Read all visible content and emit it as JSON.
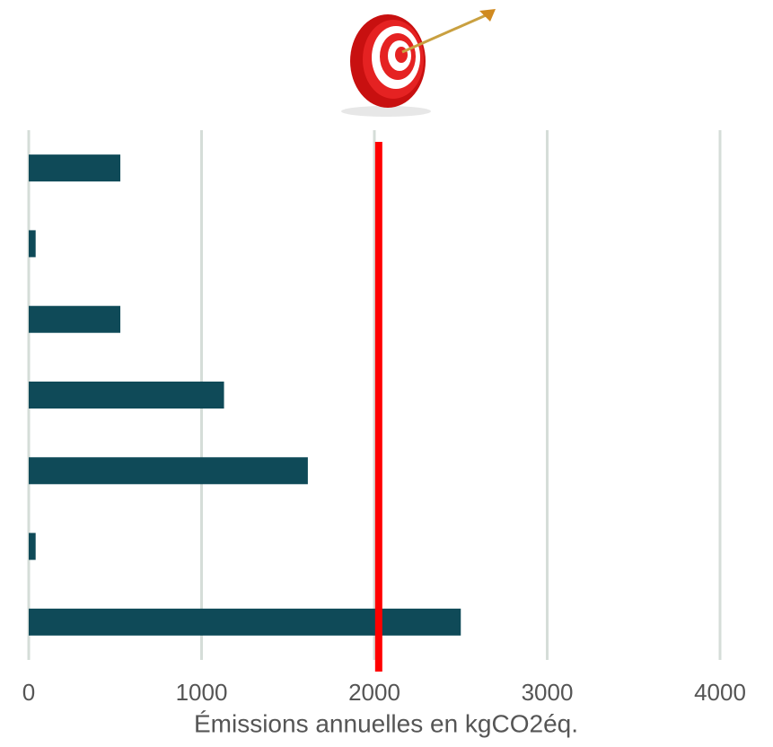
{
  "chart_data": {
    "type": "bar",
    "orientation": "horizontal",
    "x_label": "Émissions annuelles en kgCO2éq.",
    "categories": [
      null,
      null,
      null,
      null,
      null,
      null,
      null
    ],
    "values": [
      530,
      40,
      530,
      1130,
      1615,
      40,
      2500
    ],
    "color": "#0f4a58",
    "xlim": [
      0,
      4000
    ],
    "xticks": [
      0,
      1000,
      2000,
      3000,
      4000
    ],
    "grid": true,
    "reference_line": {
      "value": 2025,
      "color": "#ff0000"
    }
  }
}
